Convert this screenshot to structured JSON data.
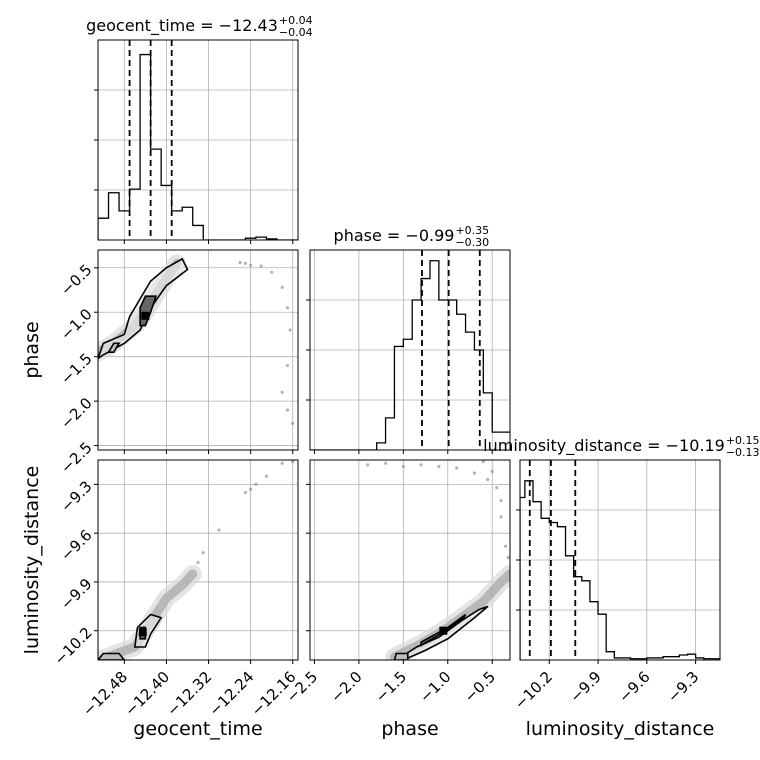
{
  "chart_data": {
    "type": "corner",
    "parameters": [
      {
        "name": "geocent_time",
        "label": "geocent_time",
        "range": [
          -12.53,
          -12.15
        ],
        "ticks": [
          -12.48,
          -12.4,
          -12.32,
          -12.24,
          -12.16
        ],
        "tick_labels": [
          "−12.48",
          "−12.40",
          "−12.32",
          "−12.24",
          "−12.16"
        ]
      },
      {
        "name": "phase",
        "label": "phase",
        "range": [
          -2.55,
          -0.3
        ],
        "ticks": [
          -2.5,
          -2.0,
          -1.5,
          -1.0,
          -0.5
        ],
        "tick_labels": [
          "−2.5",
          "−2.0",
          "−1.5",
          "−1.0",
          "−0.5"
        ]
      },
      {
        "name": "luminosity_distance",
        "label": "luminosity_distance",
        "range": [
          -10.38,
          -9.15
        ],
        "ticks": [
          -10.2,
          -9.9,
          -9.6,
          -9.3
        ],
        "tick_labels": [
          "−10.2",
          "−9.9",
          "−9.6",
          "−9.3"
        ]
      }
    ],
    "diagonal": [
      {
        "param": "geocent_time",
        "title_main": "geocent_time = −12.43",
        "title_sup": "+0.04",
        "title_sub": "−0.04",
        "quantiles": [
          -12.47,
          -12.43,
          -12.39
        ],
        "ylim": [
          0,
          0.55
        ],
        "bins": [
          -12.53,
          -12.51,
          -12.49,
          -12.47,
          -12.45,
          -12.43,
          -12.41,
          -12.39,
          -12.37,
          -12.35,
          -12.33,
          -12.31,
          -12.29,
          -12.27,
          -12.25,
          -12.23,
          -12.21,
          -12.19,
          -12.17,
          -12.15
        ],
        "counts": [
          0.06,
          0.13,
          0.08,
          0.14,
          0.51,
          0.25,
          0.15,
          0.08,
          0.09,
          0.04,
          0,
          0,
          0,
          0,
          0.005,
          0.008,
          0.003,
          0,
          0
        ]
      },
      {
        "param": "phase",
        "title_main": "phase = −0.99",
        "title_sup": "+0.35",
        "title_sub": "−0.30",
        "quantiles": [
          -1.29,
          -0.99,
          -0.64
        ],
        "ylim": [
          0,
          0.56
        ],
        "bins": [
          -2.55,
          -2.2,
          -2.0,
          -1.8,
          -1.7,
          -1.6,
          -1.5,
          -1.4,
          -1.3,
          -1.2,
          -1.1,
          -1.0,
          -0.9,
          -0.8,
          -0.7,
          -0.6,
          -0.5,
          -0.4,
          -0.3
        ],
        "counts": [
          0,
          0,
          0,
          0.02,
          0.09,
          0.29,
          0.31,
          0.42,
          0.48,
          0.53,
          0.42,
          0.42,
          0.38,
          0.33,
          0.28,
          0.16,
          0.05,
          0.05
        ]
      },
      {
        "param": "luminosity_distance",
        "title_main": "luminosity_distance = −10.19",
        "title_sup": "+0.15",
        "title_sub": "−0.13",
        "quantiles": [
          -10.32,
          -10.19,
          -10.04
        ],
        "ylim": [
          0,
          0.48
        ],
        "bins": [
          -10.38,
          -10.35,
          -10.3,
          -10.25,
          -10.2,
          -10.15,
          -10.1,
          -10.05,
          -10.0,
          -9.95,
          -9.9,
          -9.85,
          -9.8,
          -9.7,
          -9.6,
          -9.5,
          -9.4,
          -9.35,
          -9.3,
          -9.25,
          -9.15
        ],
        "counts": [
          0.39,
          0.43,
          0.38,
          0.34,
          0.33,
          0.32,
          0.25,
          0.2,
          0.19,
          0.14,
          0.11,
          0.02,
          0.005,
          0.003,
          0.005,
          0.008,
          0.012,
          0.014,
          0.005,
          0.003
        ]
      }
    ],
    "pairs": [
      {
        "x": "geocent_time",
        "y": "phase",
        "ridge": [
          [
            -12.53,
            -1.45
          ],
          [
            -12.5,
            -1.35
          ],
          [
            -12.46,
            -1.15
          ],
          [
            -12.44,
            -1.0
          ],
          [
            -12.42,
            -0.8
          ],
          [
            -12.4,
            -0.62
          ],
          [
            -12.38,
            -0.45
          ]
        ],
        "outer_contour": [
          [
            -12.53,
            -1.52
          ],
          [
            -12.52,
            -1.35
          ],
          [
            -12.48,
            -1.25
          ],
          [
            -12.47,
            -1.05
          ],
          [
            -12.45,
            -0.85
          ],
          [
            -12.43,
            -0.65
          ],
          [
            -12.4,
            -0.5
          ],
          [
            -12.37,
            -0.4
          ],
          [
            -12.36,
            -0.52
          ],
          [
            -12.4,
            -0.7
          ],
          [
            -12.43,
            -0.95
          ],
          [
            -12.45,
            -1.2
          ],
          [
            -12.48,
            -1.35
          ],
          [
            -12.52,
            -1.48
          ]
        ],
        "inner_contour": [
          [
            -12.45,
            -1.15
          ],
          [
            -12.45,
            -0.95
          ],
          [
            -12.44,
            -0.82
          ],
          [
            -12.42,
            -0.82
          ],
          [
            -12.43,
            -1.0
          ],
          [
            -12.44,
            -1.15
          ]
        ],
        "mid_contour": [
          [
            -12.51,
            -1.45
          ],
          [
            -12.5,
            -1.35
          ],
          [
            -12.49,
            -1.35
          ],
          [
            -12.5,
            -1.45
          ]
        ],
        "peak": [
          -12.44,
          -1.04
        ],
        "sparse": [
          [
            -12.25,
            -0.45
          ],
          [
            -12.24,
            -0.47
          ],
          [
            -12.22,
            -0.48
          ],
          [
            -12.18,
            -0.72
          ],
          [
            -12.17,
            -0.95
          ],
          [
            -12.165,
            -1.2
          ],
          [
            -12.17,
            -1.6
          ],
          [
            -12.18,
            -1.9
          ],
          [
            -12.17,
            -2.1
          ],
          [
            -12.16,
            -2.25
          ],
          [
            -12.2,
            -0.55
          ],
          [
            -12.26,
            -0.44
          ]
        ]
      },
      {
        "x": "geocent_time",
        "y": "luminosity_distance",
        "ridge": [
          [
            -12.52,
            -10.37
          ],
          [
            -12.46,
            -10.3
          ],
          [
            -12.44,
            -10.2
          ],
          [
            -12.42,
            -10.1
          ],
          [
            -12.4,
            -10.0
          ],
          [
            -12.37,
            -9.92
          ],
          [
            -12.35,
            -9.85
          ]
        ],
        "outer_contour": [
          [
            -12.46,
            -10.3
          ],
          [
            -12.455,
            -10.18
          ],
          [
            -12.43,
            -10.1
          ],
          [
            -12.41,
            -10.12
          ],
          [
            -12.43,
            -10.22
          ],
          [
            -12.44,
            -10.3
          ]
        ],
        "inner_contour": [
          [
            -12.45,
            -10.25
          ],
          [
            -12.45,
            -10.18
          ],
          [
            -12.44,
            -10.18
          ],
          [
            -12.44,
            -10.25
          ]
        ],
        "mid_contour": [
          [
            -12.53,
            -10.38
          ],
          [
            -12.52,
            -10.34
          ],
          [
            -12.49,
            -10.34
          ],
          [
            -12.48,
            -10.38
          ]
        ],
        "peak": [
          -12.445,
          -10.21
        ],
        "sparse": [
          [
            -12.34,
            -9.78
          ],
          [
            -12.33,
            -9.72
          ],
          [
            -12.25,
            -9.35
          ],
          [
            -12.24,
            -9.33
          ],
          [
            -12.23,
            -9.3
          ],
          [
            -12.21,
            -9.25
          ],
          [
            -12.18,
            -9.17
          ],
          [
            -12.16,
            -9.16
          ],
          [
            -12.3,
            -9.58
          ]
        ]
      },
      {
        "x": "phase",
        "y": "luminosity_distance",
        "ridge": [
          [
            -1.6,
            -10.36
          ],
          [
            -1.3,
            -10.28
          ],
          [
            -1.0,
            -10.18
          ],
          [
            -0.8,
            -10.1
          ],
          [
            -0.6,
            -10.02
          ],
          [
            -0.4,
            -9.9
          ],
          [
            -0.3,
            -9.85
          ]
        ],
        "outer_contour": [
          [
            -1.55,
            -10.37
          ],
          [
            -1.35,
            -10.3
          ],
          [
            -1.1,
            -10.24
          ],
          [
            -0.85,
            -10.14
          ],
          [
            -0.65,
            -10.07
          ],
          [
            -0.55,
            -10.05
          ],
          [
            -0.7,
            -10.12
          ],
          [
            -1.0,
            -10.25
          ],
          [
            -1.25,
            -10.32
          ],
          [
            -1.5,
            -10.38
          ]
        ],
        "inner_contour": [
          [
            -1.3,
            -10.27
          ],
          [
            -1.0,
            -10.18
          ],
          [
            -0.8,
            -10.1
          ],
          [
            -0.82,
            -10.12
          ],
          [
            -1.02,
            -10.2
          ],
          [
            -1.3,
            -10.29
          ]
        ],
        "mid_contour": [
          [
            -1.6,
            -10.38
          ],
          [
            -1.58,
            -10.34
          ],
          [
            -1.45,
            -10.34
          ],
          [
            -1.45,
            -10.38
          ]
        ],
        "peak": [
          -1.05,
          -10.2
        ],
        "sparse": [
          [
            -1.9,
            -9.18
          ],
          [
            -1.7,
            -9.17
          ],
          [
            -1.5,
            -9.19
          ],
          [
            -1.3,
            -9.18
          ],
          [
            -1.1,
            -9.19
          ],
          [
            -0.9,
            -9.2
          ],
          [
            -0.7,
            -9.23
          ],
          [
            -0.55,
            -9.27
          ],
          [
            -0.45,
            -9.32
          ],
          [
            -0.4,
            -9.4
          ],
          [
            -0.4,
            -9.5
          ],
          [
            -0.35,
            -9.68
          ],
          [
            -0.32,
            -9.75
          ],
          [
            -0.5,
            -9.22
          ],
          [
            -0.6,
            -9.16
          ]
        ]
      }
    ],
    "grid": true
  }
}
